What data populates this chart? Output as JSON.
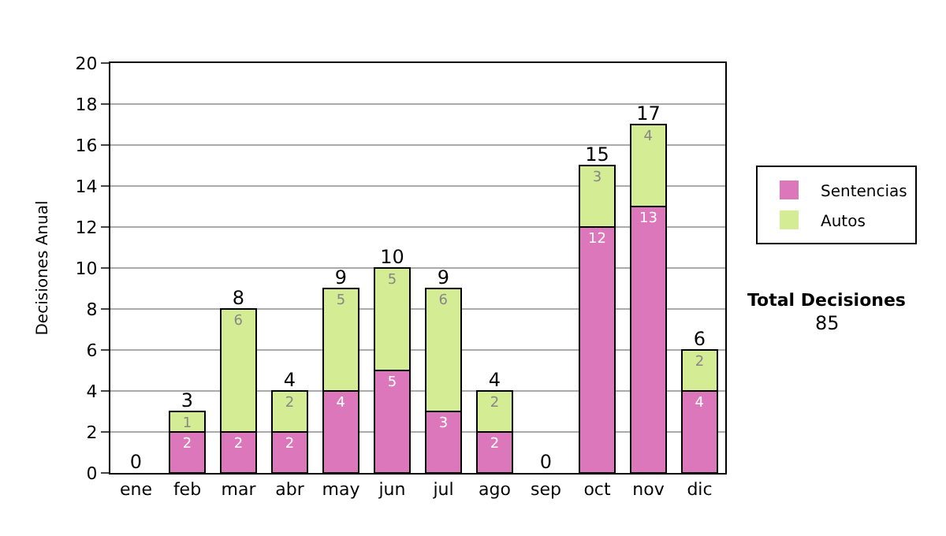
{
  "chart_data": {
    "type": "bar",
    "stacked": true,
    "ylabel": "Decisiones Anual",
    "categories": [
      "ene",
      "feb",
      "mar",
      "abr",
      "may",
      "jun",
      "jul",
      "ago",
      "sep",
      "oct",
      "nov",
      "dic"
    ],
    "series": [
      {
        "name": "Sentencias",
        "color": "#dd77bb",
        "values": [
          0,
          2,
          2,
          2,
          4,
          5,
          3,
          2,
          0,
          12,
          13,
          4
        ],
        "value_labels": [
          null,
          "2",
          "2",
          "2",
          "4",
          "5",
          "3",
          "2",
          null,
          "12",
          "13",
          "4"
        ]
      },
      {
        "name": "Autos",
        "color": "#d4ec94",
        "values": [
          0,
          1,
          6,
          2,
          5,
          5,
          6,
          2,
          0,
          3,
          4,
          2
        ],
        "value_labels": [
          null,
          "1",
          "6",
          "2",
          "5",
          "5",
          "6",
          "2",
          null,
          "3",
          "4",
          "2"
        ]
      }
    ],
    "totals": [
      "0",
      "3",
      "8",
      "4",
      "9",
      "10",
      "9",
      "4",
      "0",
      "15",
      "17",
      "6"
    ],
    "ylim": [
      0,
      20
    ],
    "yticks": [
      0,
      2,
      4,
      6,
      8,
      10,
      12,
      14,
      16,
      18,
      20
    ],
    "grid": "y",
    "legend": "right",
    "annotations": [
      "Total Decisiones",
      "85"
    ]
  }
}
